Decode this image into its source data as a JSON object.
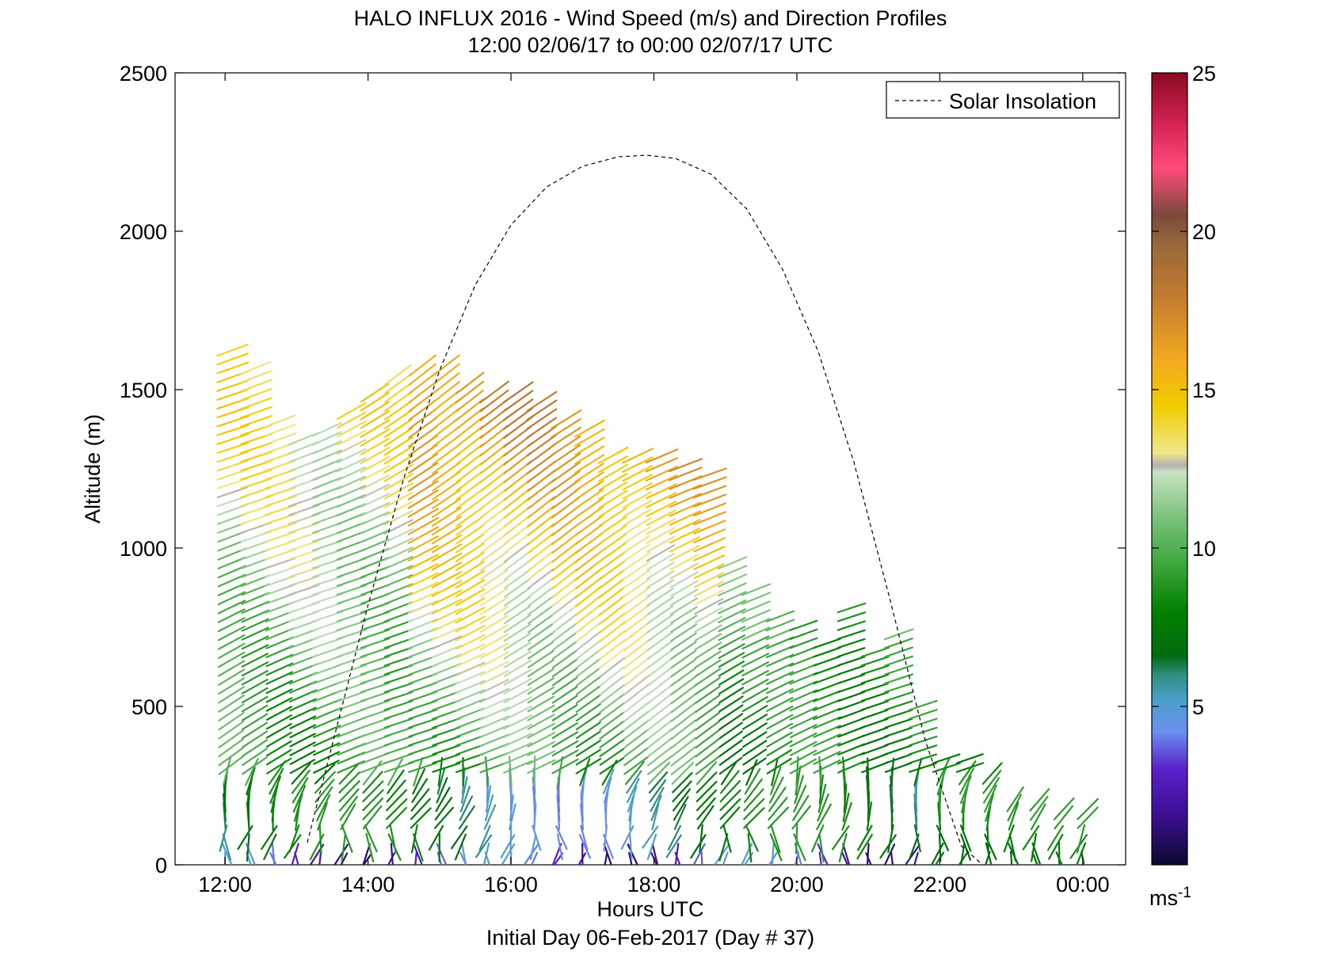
{
  "chart_data": {
    "type": "barbs",
    "title": "HALO INFLUX 2016 - Wind Speed (m/s) and Direction Profiles",
    "subtitle": "12:00 02/06/17 to 00:00 02/07/17  UTC",
    "xlabel": "Hours UTC",
    "footer": "Initial Day 06-Feb-2017 (Day # 37)",
    "ylabel": "Altitude (m)",
    "xlim": [
      11.3,
      24.6
    ],
    "ylim": [
      0,
      2500
    ],
    "x_ticks": [
      12,
      14,
      16,
      18,
      20,
      22,
      24
    ],
    "x_tick_labels": [
      "12:00",
      "14:00",
      "16:00",
      "18:00",
      "20:00",
      "22:00",
      "00:00"
    ],
    "y_ticks": [
      0,
      500,
      1000,
      1500,
      2000,
      2500
    ],
    "y_tick_labels": [
      "0",
      "500",
      "1000",
      "1500",
      "2000",
      "2500"
    ],
    "legend": {
      "placement": "top-right",
      "entries": [
        {
          "label": "Solar Insolation",
          "style": "dashed",
          "color": "#000000"
        }
      ]
    },
    "colorbar": {
      "range": [
        0,
        25
      ],
      "ticks": [
        5,
        10,
        15,
        20,
        25
      ],
      "tick_labels": [
        "5",
        "10",
        "15",
        "20",
        "25"
      ],
      "unit_label": "ms",
      "unit_exponent": "-1",
      "stops": [
        {
          "v": 0,
          "c": "#0a0a2e"
        },
        {
          "v": 1.5,
          "c": "#3a0f8f"
        },
        {
          "v": 3,
          "c": "#5a1fc8"
        },
        {
          "v": 4.2,
          "c": "#6a8ff0"
        },
        {
          "v": 5.2,
          "c": "#4aa0c8"
        },
        {
          "v": 6,
          "c": "#2f8f7f"
        },
        {
          "v": 6.6,
          "c": "#006a10"
        },
        {
          "v": 8,
          "c": "#008000"
        },
        {
          "v": 9.5,
          "c": "#3ea63e"
        },
        {
          "v": 11,
          "c": "#7cc27c"
        },
        {
          "v": 12.4,
          "c": "#c9e3c3"
        },
        {
          "v": 12.6,
          "c": "#b0b0b0"
        },
        {
          "v": 13,
          "c": "#f0e68c"
        },
        {
          "v": 14.5,
          "c": "#f0cc00"
        },
        {
          "v": 16,
          "c": "#f0a820"
        },
        {
          "v": 18,
          "c": "#c07a30"
        },
        {
          "v": 19.5,
          "c": "#9a6a3a"
        },
        {
          "v": 20.5,
          "c": "#7a4a3a"
        },
        {
          "v": 22,
          "c": "#ff4a7a"
        },
        {
          "v": 23.5,
          "c": "#d02050"
        },
        {
          "v": 25,
          "c": "#8a0a20"
        }
      ]
    },
    "solar_insolation": {
      "style": "dashed",
      "x": [
        13.15,
        13.5,
        14.0,
        14.5,
        15.0,
        15.5,
        16.0,
        16.5,
        17.0,
        17.5,
        17.9,
        18.3,
        18.8,
        19.3,
        19.8,
        20.3,
        20.8,
        21.3,
        21.8,
        22.3,
        22.6
      ],
      "y": [
        70,
        380,
        820,
        1220,
        1560,
        1830,
        2020,
        2140,
        2205,
        2235,
        2240,
        2230,
        2180,
        2070,
        1880,
        1620,
        1270,
        840,
        390,
        60,
        0
      ]
    },
    "profiles": [
      {
        "t": 12.0,
        "top": 1620
      },
      {
        "t": 12.33,
        "top": 1560
      },
      {
        "t": 12.67,
        "top": 1410
      },
      {
        "t": 13.0,
        "top": 1360
      },
      {
        "t": 13.33,
        "top": 1380
      },
      {
        "t": 13.67,
        "top": 1440
      },
      {
        "t": 14.0,
        "top": 1490
      },
      {
        "t": 14.33,
        "top": 1540
      },
      {
        "t": 14.67,
        "top": 1570
      },
      {
        "t": 15.0,
        "top": 1580
      },
      {
        "t": 15.33,
        "top": 1520
      },
      {
        "t": 15.67,
        "top": 1500
      },
      {
        "t": 16.0,
        "top": 1490
      },
      {
        "t": 16.33,
        "top": 1460
      },
      {
        "t": 16.67,
        "top": 1400
      },
      {
        "t": 17.0,
        "top": 1380
      },
      {
        "t": 17.33,
        "top": 1300
      },
      {
        "t": 17.67,
        "top": 1300
      },
      {
        "t": 18.0,
        "top": 1290
      },
      {
        "t": 18.33,
        "top": 1270
      },
      {
        "t": 18.67,
        "top": 1250
      },
      {
        "t": 19.0,
        "top": 960
      },
      {
        "t": 19.33,
        "top": 880
      },
      {
        "t": 19.67,
        "top": 790
      },
      {
        "t": 20.0,
        "top": 750
      },
      {
        "t": 20.33,
        "top": 700
      },
      {
        "t": 20.67,
        "top": 830
      },
      {
        "t": 21.0,
        "top": 680
      },
      {
        "t": 21.33,
        "top": 740
      },
      {
        "t": 21.67,
        "top": 500
      },
      {
        "t": 22.0,
        "top": 340
      },
      {
        "t": 22.33,
        "top": 330
      },
      {
        "t": 22.67,
        "top": 290
      },
      {
        "t": 23.0,
        "top": 210
      },
      {
        "t": 23.33,
        "top": 200
      },
      {
        "t": 23.67,
        "top": 180
      },
      {
        "t": 24.0,
        "top": 170
      }
    ]
  }
}
